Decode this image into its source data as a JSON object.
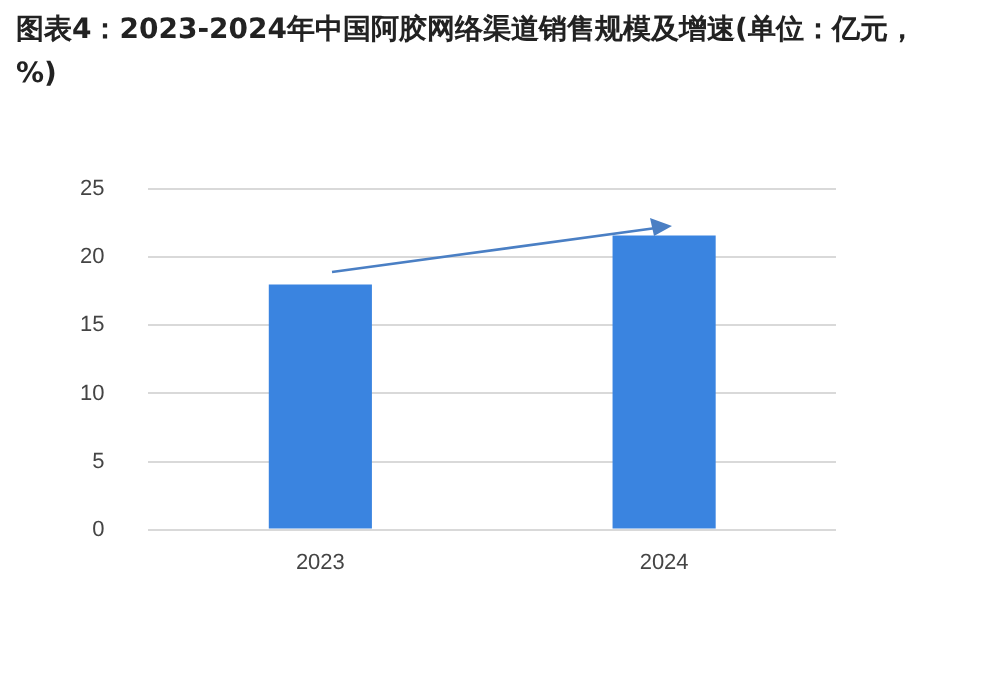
{
  "chart_data": {
    "type": "bar",
    "title": "图表4：2023-2024年中国阿胶网络渠道销售规模及增速(单位：亿元，%)",
    "categories": [
      "2023",
      "2024"
    ],
    "values": [
      18.0,
      21.6
    ],
    "color": "#3a84e0",
    "ylim": [
      0,
      25
    ],
    "yticks": [
      0,
      5,
      10,
      15,
      20,
      25
    ],
    "grid": "y",
    "legend": false
  }
}
